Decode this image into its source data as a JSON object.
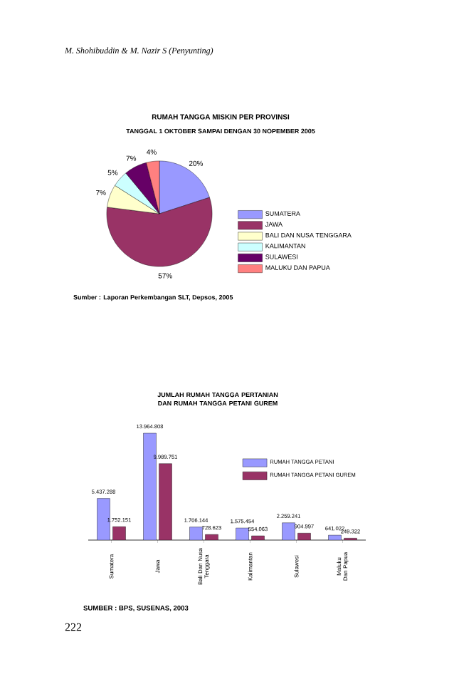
{
  "chart_data": [
    {
      "type": "pie",
      "title": "RUMAH TANGGA MISKIN PER PROVINSI",
      "subtitle": "TANGGAL 1 OKTOBER SAMPAI DENGAN 30 NOPEMBER 2005",
      "categories": [
        "SUMATERA",
        "JAWA",
        "BALI DAN NUSA TENGGARA",
        "KALIMANTAN",
        "SULAWESI",
        "MALUKU DAN PAPUA"
      ],
      "values": [
        20,
        57,
        7,
        5,
        7,
        4
      ],
      "value_labels": [
        "20%",
        "57%",
        "7%",
        "5%",
        "7%",
        "4%"
      ],
      "colors": [
        "#9999ff",
        "#993366",
        "#ffffcc",
        "#ccffff",
        "#660066",
        "#ff8080"
      ],
      "legend": "right",
      "annotations": [
        "M. Shohibuddin & M. Nazir S (Penyunting)",
        "Sumber : Laporan Perkembangan SLT, Depsos, 2005"
      ]
    },
    {
      "type": "bar",
      "title": "JUMLAH RUMAH TANGGA PERTANIAN DAN RUMAH TANGGA PETANI GUREM",
      "categories": [
        "Sumatera",
        "Jawa",
        "Bali Dan Nusa Tenggara",
        "Kalimantan",
        "Sulawesi",
        "Maluku Dan Papua"
      ],
      "series": [
        {
          "name": "RUMAH TANGGA PETANI",
          "color": "#9999ff",
          "values": [
            5437288,
            13964808,
            1706144,
            1575454,
            2259241,
            641022
          ],
          "value_labels": [
            "5.437.288",
            "13.964.808",
            "1.706.144",
            "1.575.454",
            "2.259.241",
            "641.022"
          ]
        },
        {
          "name": "RUMAH TANGGA PETANI GUREM",
          "color": "#993366",
          "values": [
            1752151,
            9989751,
            728623,
            554063,
            904997,
            249322
          ],
          "value_labels": [
            "1.752.151",
            "9.989.751",
            "728.623",
            "554.063",
            "904.997",
            "249.322"
          ]
        }
      ],
      "legend": "right",
      "annotations": [
        "SUMBER : BPS, SUSENAS, 2003",
        "222"
      ]
    }
  ]
}
